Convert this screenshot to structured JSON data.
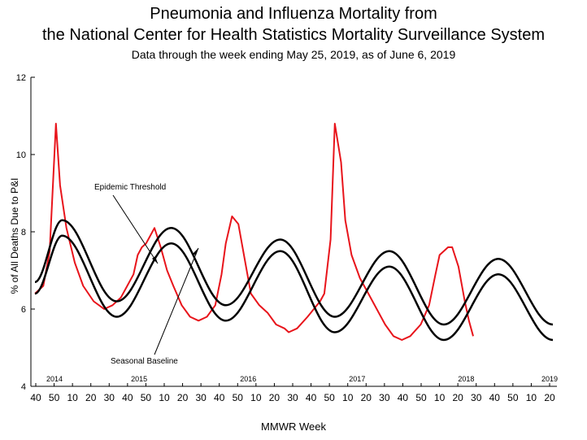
{
  "chart_data": {
    "type": "line",
    "title": "Pneumonia and Influenza Mortality from",
    "title_line2": "the National Center for Health Statistics Mortality Surveillance System",
    "subtitle": "Data through the week ending May 25, 2019, as of June 6, 2019",
    "xlabel": "MMWR Week",
    "ylabel": "% of All Deaths Due to P&I",
    "ylim": [
      4,
      12
    ],
    "y_ticks": [
      4,
      6,
      8,
      10,
      12
    ],
    "x_tick_labels": [
      "40",
      "50",
      "10",
      "20",
      "30",
      "40",
      "50",
      "10",
      "20",
      "30",
      "40",
      "50",
      "10",
      "20",
      "30",
      "40",
      "50",
      "10",
      "20",
      "30",
      "40",
      "50",
      "10",
      "20",
      "30",
      "40",
      "50",
      "10",
      "20"
    ],
    "year_labels": [
      "2014",
      "2015",
      "2016",
      "2017",
      "2018",
      "2019"
    ],
    "grid": false,
    "annotations": [
      "Epidemic Threshold",
      "Seasonal Baseline"
    ],
    "colors": {
      "observed": "#e8141b",
      "baseline": "#000000",
      "threshold": "#000000"
    },
    "series": [
      {
        "values": [
          [
            0,
            6.4
          ],
          [
            4,
            6.6
          ],
          [
            7,
            7.5
          ],
          [
            10,
            10.8
          ],
          [
            12,
            9.2
          ],
          [
            15,
            8.1
          ],
          [
            19,
            7.2
          ],
          [
            23,
            6.6
          ],
          [
            28,
            6.2
          ],
          [
            33,
            6.0
          ],
          [
            37,
            6.1
          ],
          [
            41,
            6.3
          ],
          [
            44,
            6.6
          ],
          [
            47,
            6.9
          ],
          [
            49,
            7.4
          ],
          [
            51,
            7.6
          ],
          [
            53,
            7.7
          ],
          [
            54,
            7.8
          ],
          [
            57,
            8.1
          ],
          [
            60,
            7.6
          ],
          [
            63,
            7.0
          ],
          [
            66,
            6.6
          ],
          [
            70,
            6.1
          ],
          [
            74,
            5.8
          ],
          [
            78,
            5.7
          ],
          [
            82,
            5.8
          ],
          [
            86,
            6.1
          ],
          [
            89,
            6.9
          ],
          [
            91,
            7.7
          ],
          [
            94,
            8.4
          ],
          [
            97,
            8.2
          ],
          [
            100,
            7.3
          ],
          [
            103,
            6.4
          ],
          [
            107,
            6.1
          ],
          [
            111,
            5.9
          ],
          [
            115,
            5.6
          ],
          [
            119,
            5.5
          ],
          [
            121,
            5.4
          ],
          [
            125,
            5.5
          ],
          [
            130,
            5.8
          ],
          [
            136,
            6.2
          ],
          [
            138,
            6.4
          ],
          [
            141,
            7.8
          ],
          [
            143,
            10.8
          ],
          [
            146,
            9.8
          ],
          [
            148,
            8.3
          ],
          [
            151,
            7.4
          ],
          [
            155,
            6.8
          ],
          [
            159,
            6.4
          ],
          [
            163,
            6.0
          ],
          [
            167,
            5.6
          ],
          [
            171,
            5.3
          ],
          [
            175,
            5.2
          ],
          [
            179,
            5.3
          ],
          [
            184,
            5.6
          ],
          [
            188,
            6.1
          ],
          [
            191,
            6.9
          ],
          [
            193,
            7.4
          ],
          [
            195,
            7.5
          ],
          [
            197,
            7.6
          ],
          [
            199,
            7.6
          ],
          [
            202,
            7.1
          ],
          [
            205,
            6.2
          ],
          [
            207,
            5.7
          ],
          [
            209,
            5.3
          ]
        ]
      },
      {
        "name": "Seasonal Baseline",
        "values": [
          [
            0,
            6.4
          ],
          [
            13,
            7.9
          ],
          [
            39,
            5.8
          ],
          [
            65,
            7.7
          ],
          [
            91,
            5.7
          ],
          [
            117,
            7.5
          ],
          [
            143,
            5.4
          ],
          [
            169,
            7.1
          ],
          [
            195,
            5.2
          ],
          [
            221,
            6.9
          ],
          [
            247,
            5.2
          ]
        ]
      },
      {
        "name": "Epidemic Threshold",
        "values": [
          [
            0,
            6.7
          ],
          [
            13,
            8.3
          ],
          [
            39,
            6.2
          ],
          [
            65,
            8.1
          ],
          [
            91,
            6.1
          ],
          [
            117,
            7.8
          ],
          [
            143,
            5.8
          ],
          [
            169,
            7.5
          ],
          [
            195,
            5.6
          ],
          [
            221,
            7.3
          ],
          [
            247,
            5.6
          ]
        ]
      }
    ]
  }
}
